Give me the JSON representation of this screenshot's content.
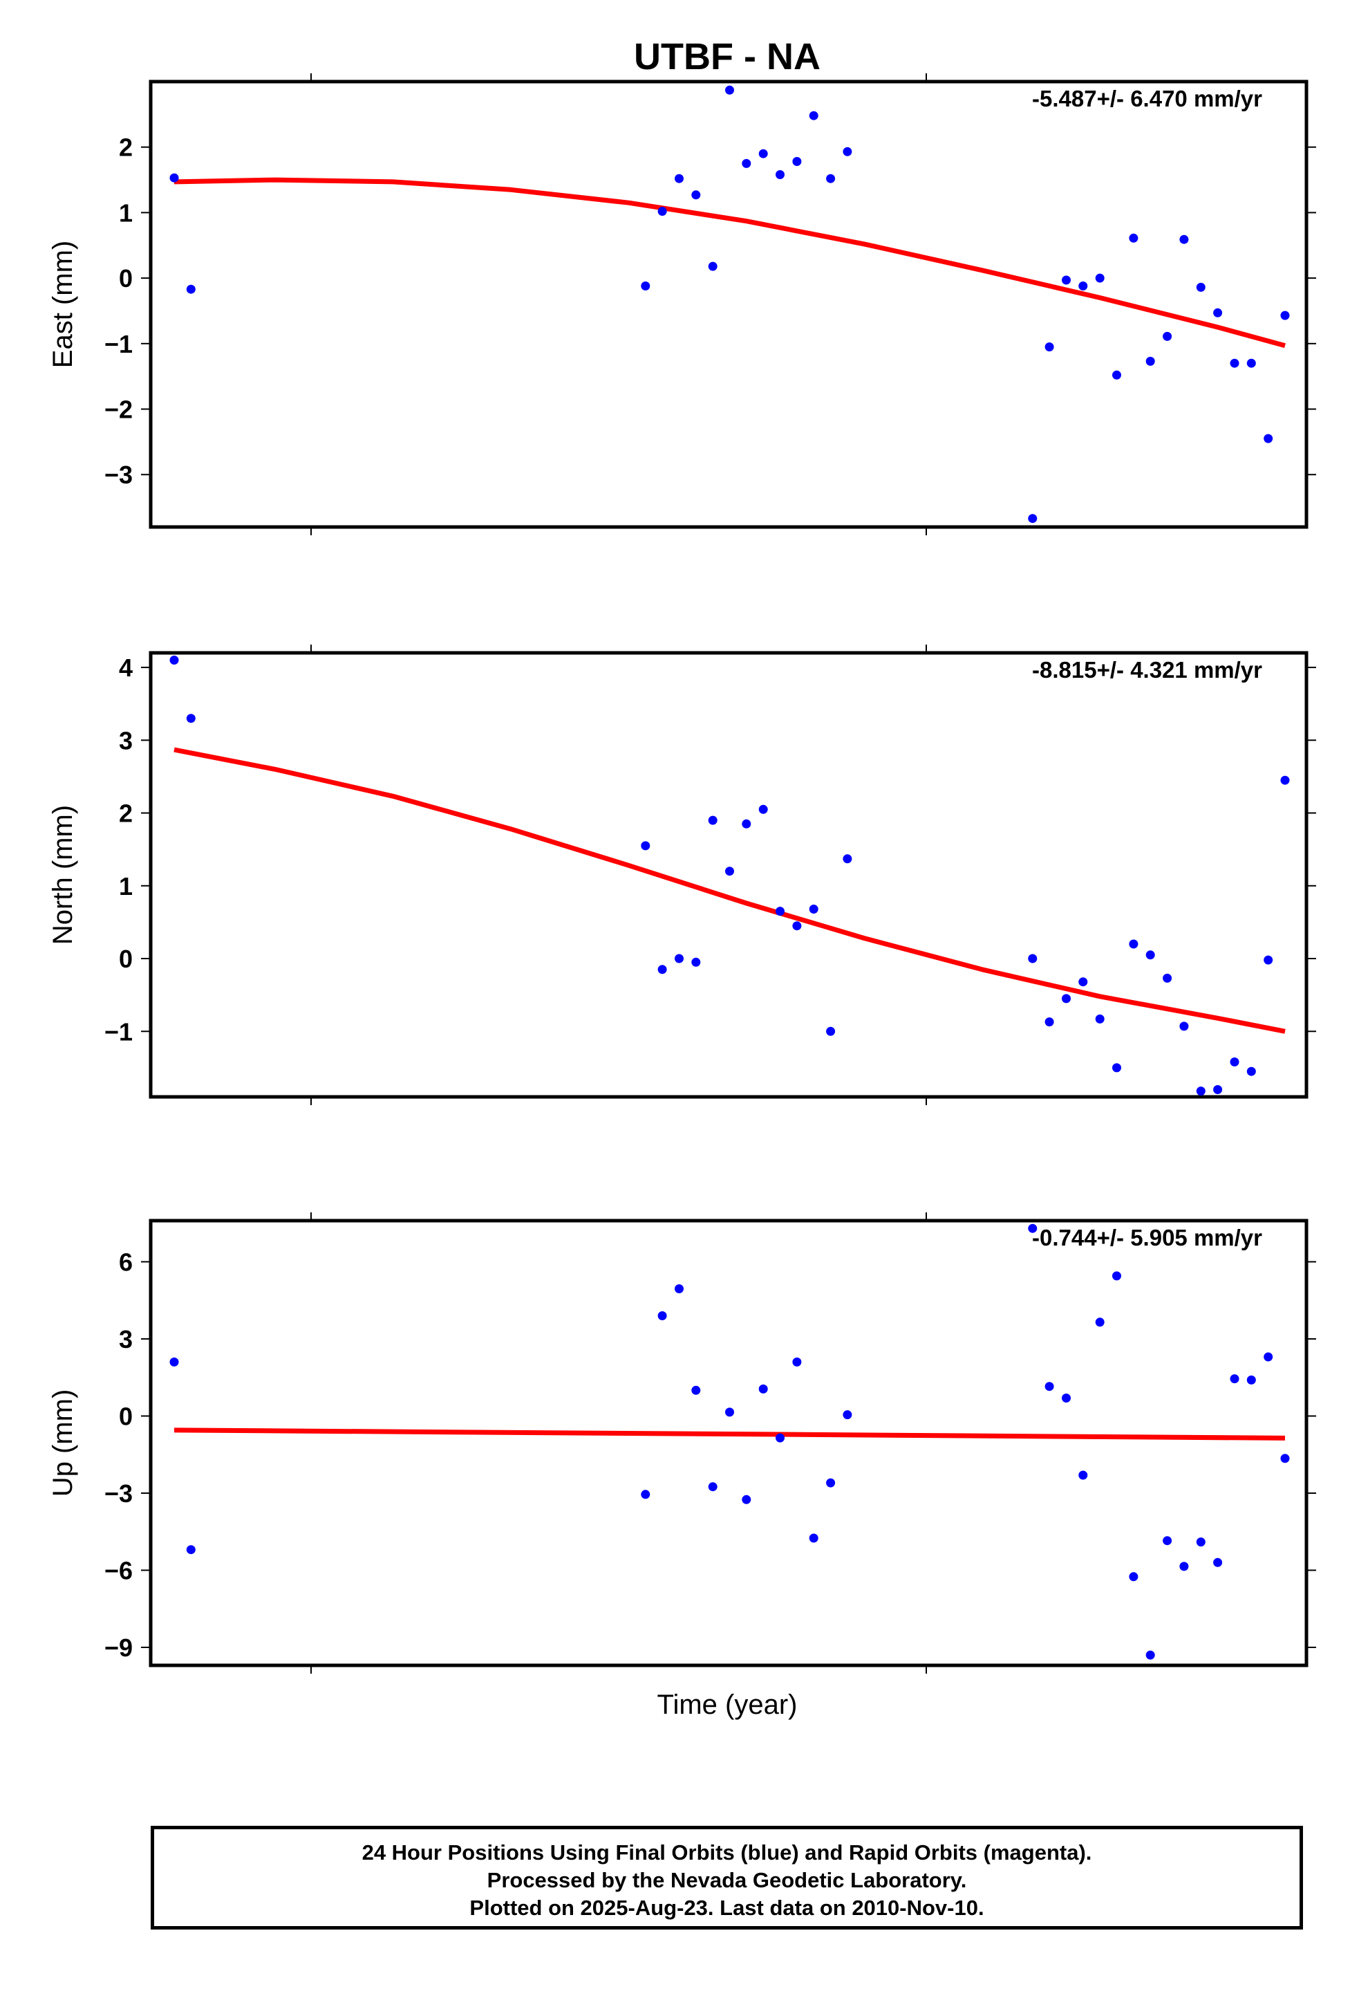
{
  "title": "UTBF - NA",
  "xlabel": "Time (year)",
  "footer": {
    "line1": "24 Hour Positions Using Final Orbits (blue) and Rapid Orbits (magenta).",
    "line2": "Processed by the Nevada Geodetic Laboratory.",
    "line3": "Plotted on 2025-Aug-23. Last data on 2010-Nov-10."
  },
  "colors": {
    "points": "#0000ff",
    "fit": "#ff0000",
    "frame": "#000000"
  },
  "chart_data": [
    {
      "type": "scatter",
      "ylabel": "East (mm)",
      "rate": "-5.487+/- 6.470 mm/yr",
      "ylim": [
        -3.8,
        3.0
      ],
      "yticks": [
        -3,
        -2,
        -1,
        0,
        1,
        2
      ],
      "grid": false,
      "series": [
        {
          "kind": "points",
          "x": [
            0,
            1,
            28,
            29,
            30,
            31,
            32,
            33,
            34,
            35,
            36,
            37,
            38,
            39,
            40,
            51,
            52,
            53,
            54,
            55,
            56,
            57,
            58,
            59,
            60,
            61,
            62,
            63,
            64,
            65,
            66
          ],
          "y": [
            1.53,
            -0.17,
            -0.12,
            1.02,
            1.52,
            1.27,
            0.18,
            2.87,
            1.75,
            1.9,
            1.58,
            1.78,
            2.48,
            1.52,
            1.93,
            -3.67,
            -1.05,
            -0.03,
            -0.12,
            0.0,
            -1.48,
            0.61,
            -1.27,
            -0.89,
            0.59,
            -0.14,
            -0.53,
            -1.3,
            -1.3,
            -2.45,
            -0.57
          ]
        },
        {
          "kind": "fit",
          "x": [
            0,
            6,
            13,
            20,
            27,
            34,
            41,
            48,
            55,
            62,
            66
          ],
          "y": [
            1.47,
            1.5,
            1.47,
            1.35,
            1.15,
            0.87,
            0.52,
            0.12,
            -0.3,
            -0.75,
            -1.03
          ]
        }
      ]
    },
    {
      "type": "scatter",
      "ylabel": "North (mm)",
      "rate": "-8.815+/- 4.321 mm/yr",
      "ylim": [
        -1.9,
        4.2
      ],
      "yticks": [
        -1,
        0,
        1,
        2,
        3,
        4
      ],
      "grid": false,
      "series": [
        {
          "kind": "points",
          "x": [
            0,
            1,
            28,
            29,
            30,
            31,
            32,
            33,
            34,
            35,
            36,
            37,
            38,
            39,
            40,
            51,
            52,
            53,
            54,
            55,
            56,
            57,
            58,
            59,
            60,
            61,
            62,
            63,
            64,
            65,
            66
          ],
          "y": [
            4.1,
            3.3,
            1.55,
            -0.15,
            0.0,
            -0.05,
            1.9,
            1.2,
            1.85,
            2.05,
            0.65,
            0.45,
            0.68,
            -1.0,
            1.37,
            0.0,
            -0.87,
            -0.55,
            -0.32,
            -0.83,
            -1.5,
            0.2,
            0.05,
            -0.27,
            -0.93,
            -1.82,
            -1.8,
            -1.42,
            -1.55,
            -0.02,
            2.45
          ]
        },
        {
          "kind": "fit",
          "x": [
            0,
            6,
            13,
            20,
            27,
            34,
            41,
            48,
            55,
            62,
            66
          ],
          "y": [
            2.87,
            2.6,
            2.23,
            1.78,
            1.28,
            0.76,
            0.28,
            -0.15,
            -0.52,
            -0.82,
            -1.0
          ]
        }
      ]
    },
    {
      "type": "scatter",
      "ylabel": "Up (mm)",
      "rate": "-0.744+/- 5.905 mm/yr",
      "ylim": [
        -9.7,
        7.6
      ],
      "yticks": [
        -9,
        -6,
        -3,
        0,
        3,
        6
      ],
      "grid": false,
      "series": [
        {
          "kind": "points",
          "x": [
            0,
            1,
            28,
            29,
            30,
            31,
            32,
            33,
            34,
            35,
            36,
            37,
            38,
            39,
            40,
            51,
            52,
            53,
            54,
            55,
            56,
            57,
            58,
            59,
            60,
            61,
            62,
            63,
            64,
            65,
            66
          ],
          "y": [
            2.1,
            -5.2,
            -3.05,
            3.9,
            4.95,
            1.0,
            -2.75,
            0.15,
            -3.25,
            1.05,
            -0.85,
            2.1,
            -4.75,
            -2.6,
            0.05,
            7.3,
            1.15,
            0.7,
            -2.3,
            3.65,
            5.45,
            -6.25,
            -9.3,
            -4.85,
            -5.85,
            -4.9,
            -5.7,
            1.45,
            1.4,
            2.3,
            -1.65
          ]
        },
        {
          "kind": "fit",
          "x": [
            0,
            33,
            66
          ],
          "y": [
            -0.55,
            -0.7,
            -0.86
          ]
        }
      ]
    }
  ]
}
